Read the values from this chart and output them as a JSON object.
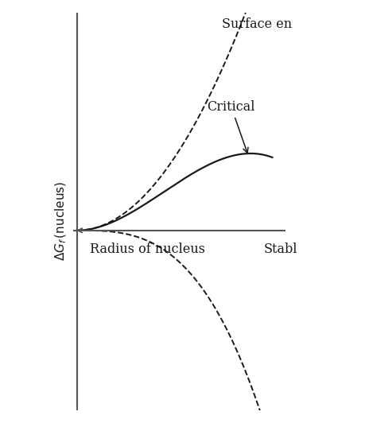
{
  "ylabel": "ΔG_f (nucleus)",
  "xlabel": "Radius of nucleus",
  "label_surface": "Surface en",
  "label_critical": "Critical",
  "label_stable": "Stabl",
  "background_color": "#ffffff",
  "curve_color": "#1a1a1a",
  "axis_color": "#555555",
  "text_color": "#1a1a1a",
  "figsize": [
    4.6,
    5.32
  ],
  "dpi": 100,
  "A": 2.8,
  "B": 2.0,
  "r_max": 1.05,
  "x_min": -0.02,
  "x_max": 1.12,
  "y_min": -1.9,
  "y_max": 2.3
}
